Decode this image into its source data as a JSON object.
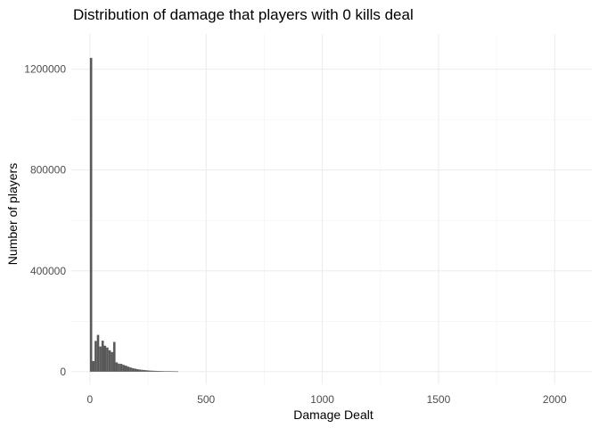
{
  "chart_data": {
    "type": "bar",
    "title": "Distribution of damage that players with 0 kills deal",
    "xlabel": "Damage Dealt",
    "ylabel": "Number of players",
    "xlim": [
      -80,
      2160
    ],
    "ylim": [
      -50000,
      1340000
    ],
    "x_ticks": [
      0,
      500,
      1000,
      1500,
      2000
    ],
    "x_tick_labels": [
      "0",
      "500",
      "1000",
      "1500",
      "2000"
    ],
    "y_ticks": [
      0,
      400000,
      800000,
      1200000
    ],
    "y_tick_labels": [
      "0",
      "400000",
      "800000",
      "1200000"
    ],
    "grid": true,
    "bar_color": "#595959",
    "bin_width": 10,
    "bins": [
      {
        "x0": 0,
        "x1": 10,
        "count": 1245000
      },
      {
        "x0": 10,
        "x1": 20,
        "count": 42000
      },
      {
        "x0": 20,
        "x1": 30,
        "count": 122000
      },
      {
        "x0": 30,
        "x1": 40,
        "count": 146000
      },
      {
        "x0": 40,
        "x1": 50,
        "count": 100000
      },
      {
        "x0": 50,
        "x1": 60,
        "count": 123000
      },
      {
        "x0": 60,
        "x1": 70,
        "count": 103000
      },
      {
        "x0": 70,
        "x1": 80,
        "count": 96000
      },
      {
        "x0": 80,
        "x1": 90,
        "count": 85000
      },
      {
        "x0": 90,
        "x1": 100,
        "count": 78000
      },
      {
        "x0": 100,
        "x1": 110,
        "count": 118000
      },
      {
        "x0": 110,
        "x1": 120,
        "count": 37000
      },
      {
        "x0": 120,
        "x1": 130,
        "count": 32000
      },
      {
        "x0": 130,
        "x1": 140,
        "count": 31000
      },
      {
        "x0": 140,
        "x1": 150,
        "count": 27000
      },
      {
        "x0": 150,
        "x1": 160,
        "count": 24000
      },
      {
        "x0": 160,
        "x1": 170,
        "count": 20000
      },
      {
        "x0": 170,
        "x1": 180,
        "count": 17000
      },
      {
        "x0": 180,
        "x1": 190,
        "count": 14000
      },
      {
        "x0": 190,
        "x1": 200,
        "count": 12000
      },
      {
        "x0": 200,
        "x1": 210,
        "count": 10000
      },
      {
        "x0": 210,
        "x1": 220,
        "count": 8500
      },
      {
        "x0": 220,
        "x1": 230,
        "count": 7500
      },
      {
        "x0": 230,
        "x1": 240,
        "count": 6500
      },
      {
        "x0": 240,
        "x1": 250,
        "count": 5500
      },
      {
        "x0": 250,
        "x1": 260,
        "count": 4800
      },
      {
        "x0": 260,
        "x1": 270,
        "count": 4200
      },
      {
        "x0": 270,
        "x1": 280,
        "count": 3700
      },
      {
        "x0": 280,
        "x1": 290,
        "count": 3300
      },
      {
        "x0": 290,
        "x1": 300,
        "count": 3000
      },
      {
        "x0": 300,
        "x1": 310,
        "count": 2700
      },
      {
        "x0": 310,
        "x1": 320,
        "count": 2400
      },
      {
        "x0": 320,
        "x1": 330,
        "count": 2200
      },
      {
        "x0": 330,
        "x1": 340,
        "count": 2000
      },
      {
        "x0": 340,
        "x1": 350,
        "count": 1800
      },
      {
        "x0": 350,
        "x1": 360,
        "count": 1600
      },
      {
        "x0": 360,
        "x1": 370,
        "count": 1400
      },
      {
        "x0": 370,
        "x1": 380,
        "count": 1200
      }
    ]
  }
}
